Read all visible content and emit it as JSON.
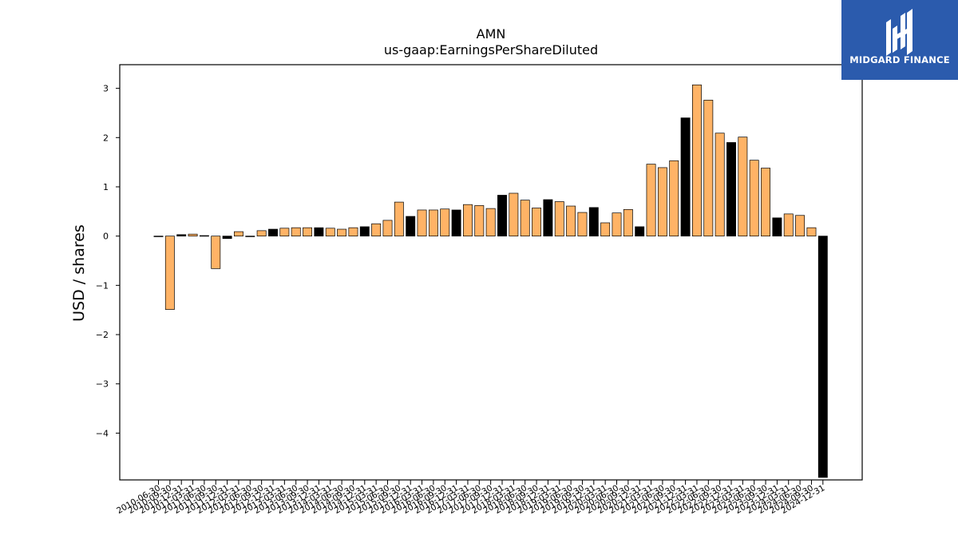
{
  "brand": {
    "name": "MIDGARD FINANCE",
    "bg_color": "#2b5bad"
  },
  "chart_data": {
    "type": "bar",
    "title": "AMN",
    "subtitle": "us-gaap:EarningsPerShareDiluted",
    "xlabel": "",
    "ylabel": "USD / shares",
    "ylim": [
      -4.95,
      3.48
    ],
    "yticks": [
      3,
      2,
      1,
      0,
      -1,
      -2,
      -3,
      -4
    ],
    "ytick_labels": [
      "3",
      "2",
      "1",
      "0",
      "−1",
      "−2",
      "−3",
      "−4"
    ],
    "grid": false,
    "legend": "none",
    "colors": {
      "quarterly": "#ffb366",
      "annual": "#000000",
      "edge": "#000000"
    },
    "categories": [
      "2010-06-30",
      "2010-09-30",
      "2010-12-31",
      "2011-03-31",
      "2011-06-30",
      "2011-09-30",
      "2011-12-31",
      "2012-03-31",
      "2012-06-30",
      "2012-09-30",
      "2012-12-31",
      "2013-03-31",
      "2013-06-30",
      "2013-09-30",
      "2013-12-31",
      "2014-03-31",
      "2014-06-30",
      "2014-09-30",
      "2014-12-31",
      "2015-03-31",
      "2015-06-30",
      "2015-09-30",
      "2015-12-31",
      "2016-03-31",
      "2016-06-30",
      "2016-09-30",
      "2016-12-31",
      "2017-03-31",
      "2017-06-30",
      "2017-09-30",
      "2017-12-31",
      "2018-03-31",
      "2018-06-30",
      "2018-09-30",
      "2018-12-31",
      "2019-03-31",
      "2019-06-30",
      "2019-09-30",
      "2019-12-31",
      "2020-03-31",
      "2020-06-30",
      "2020-09-30",
      "2020-12-31",
      "2021-03-31",
      "2021-06-30",
      "2021-09-30",
      "2021-12-31",
      "2022-03-31",
      "2022-06-30",
      "2022-09-30",
      "2022-12-31",
      "2023-03-31",
      "2023-06-30",
      "2023-09-30",
      "2023-12-31",
      "2024-03-31",
      "2024-06-30",
      "2024-09-30",
      "2024-12-31"
    ],
    "values": [
      0.0,
      -1.49,
      0.03,
      0.04,
      0.01,
      -0.66,
      -0.05,
      0.09,
      0.0,
      0.11,
      0.14,
      0.16,
      0.17,
      0.17,
      0.17,
      0.16,
      0.14,
      0.17,
      0.19,
      0.25,
      0.32,
      0.69,
      0.4,
      0.53,
      0.53,
      0.55,
      0.53,
      0.64,
      0.62,
      0.56,
      0.83,
      0.87,
      0.73,
      0.57,
      0.74,
      0.7,
      0.61,
      0.48,
      0.58,
      0.27,
      0.47,
      0.54,
      0.19,
      1.46,
      1.39,
      1.53,
      2.4,
      3.07,
      2.76,
      2.09,
      1.9,
      2.01,
      1.54,
      1.38,
      0.37,
      0.45,
      0.42,
      0.17,
      -4.9
    ],
    "period": [
      "A",
      "Q",
      "A",
      "Q",
      "A",
      "Q",
      "A",
      "Q",
      "A",
      "Q",
      "A",
      "Q",
      "Q",
      "Q",
      "A",
      "Q",
      "Q",
      "Q",
      "A",
      "Q",
      "Q",
      "Q",
      "A",
      "Q",
      "Q",
      "Q",
      "A",
      "Q",
      "Q",
      "Q",
      "A",
      "Q",
      "Q",
      "Q",
      "A",
      "Q",
      "Q",
      "Q",
      "A",
      "Q",
      "Q",
      "Q",
      "A",
      "Q",
      "Q",
      "Q",
      "A",
      "Q",
      "Q",
      "Q",
      "A",
      "Q",
      "Q",
      "Q",
      "A",
      "Q",
      "Q",
      "Q",
      "A"
    ]
  }
}
